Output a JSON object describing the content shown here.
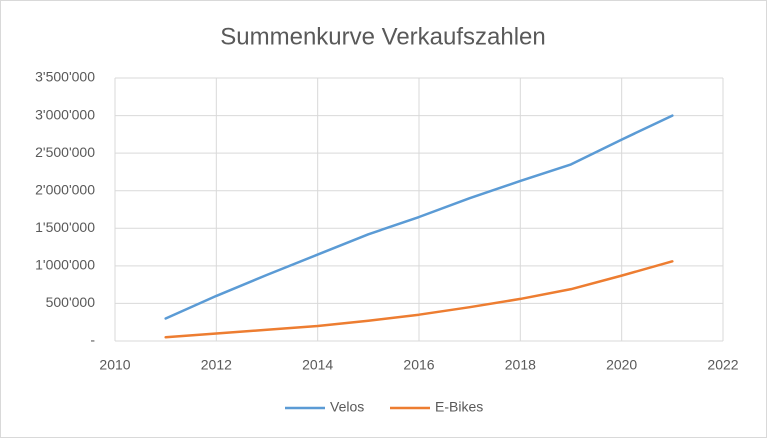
{
  "chart_data": {
    "type": "line",
    "title": "Summenkurve Verkaufszahlen",
    "x": [
      2011,
      2012,
      2013,
      2014,
      2015,
      2016,
      2017,
      2018,
      2019,
      2020,
      2021
    ],
    "series": [
      {
        "name": "Velos",
        "color": "#5b9bd5",
        "values": [
          300000,
          600000,
          880000,
          1150000,
          1420000,
          1650000,
          1900000,
          2130000,
          2350000,
          2680000,
          3000000
        ]
      },
      {
        "name": "E-Bikes",
        "color": "#ed7d31",
        "values": [
          50000,
          100000,
          150000,
          200000,
          270000,
          350000,
          450000,
          560000,
          690000,
          870000,
          1060000
        ]
      }
    ],
    "xlim": [
      2010,
      2022
    ],
    "xticks": [
      2010,
      2012,
      2014,
      2016,
      2018,
      2020,
      2022
    ],
    "ylim": [
      0,
      3500000
    ],
    "yticks": [
      {
        "value": 0,
        "label": "-"
      },
      {
        "value": 500000,
        "label": "500'000"
      },
      {
        "value": 1000000,
        "label": "1'000'000"
      },
      {
        "value": 1500000,
        "label": "1'500'000"
      },
      {
        "value": 2000000,
        "label": "2'000'000"
      },
      {
        "value": 2500000,
        "label": "2'500'000"
      },
      {
        "value": 3000000,
        "label": "3'000'000"
      },
      {
        "value": 3500000,
        "label": "3'500'000"
      }
    ],
    "grid": true,
    "legend": "bottom"
  }
}
